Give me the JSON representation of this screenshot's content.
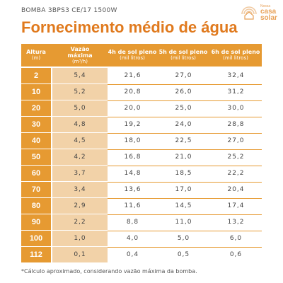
{
  "pump_name": "BOMBA 3BPS3 CE/17 1500W",
  "logo": {
    "small": "Nossa",
    "word1": "casa",
    "word2": "solar"
  },
  "title": "Fornecimento médio de água",
  "headers": {
    "altura": {
      "main": "Altura",
      "sub": "(m)"
    },
    "vazao": {
      "main": "Vazão\nmáxima",
      "sub": "(m³/h)"
    },
    "h4": {
      "main": "4h de sol pleno",
      "sub": "(mil litros)"
    },
    "h5": {
      "main": "5h de sol pleno",
      "sub": "(mil litros)"
    },
    "h6": {
      "main": "6h de sol pleno",
      "sub": "(mil litros)"
    }
  },
  "rows": [
    {
      "altura": "2",
      "vazao": "5,4",
      "h4": "21,6",
      "h5": "27,0",
      "h6": "32,4"
    },
    {
      "altura": "10",
      "vazao": "5,2",
      "h4": "20,8",
      "h5": "26,0",
      "h6": "31,2"
    },
    {
      "altura": "20",
      "vazao": "5,0",
      "h4": "20,0",
      "h5": "25,0",
      "h6": "30,0"
    },
    {
      "altura": "30",
      "vazao": "4,8",
      "h4": "19,2",
      "h5": "24,0",
      "h6": "28,8"
    },
    {
      "altura": "40",
      "vazao": "4,5",
      "h4": "18,0",
      "h5": "22,5",
      "h6": "27,0"
    },
    {
      "altura": "50",
      "vazao": "4,2",
      "h4": "16,8",
      "h5": "21,0",
      "h6": "25,2"
    },
    {
      "altura": "60",
      "vazao": "3,7",
      "h4": "14,8",
      "h5": "18,5",
      "h6": "22,2"
    },
    {
      "altura": "70",
      "vazao": "3,4",
      "h4": "13,6",
      "h5": "17,0",
      "h6": "20,4"
    },
    {
      "altura": "80",
      "vazao": "2,9",
      "h4": "11,6",
      "h5": "14,5",
      "h6": "17,4"
    },
    {
      "altura": "90",
      "vazao": "2,2",
      "h4": "8,8",
      "h5": "11,0",
      "h6": "13,2"
    },
    {
      "altura": "100",
      "vazao": "1,0",
      "h4": "4,0",
      "h5": "5,0",
      "h6": "6,0"
    },
    {
      "altura": "112",
      "vazao": "0,1",
      "h4": "0,4",
      "h5": "0,5",
      "h6": "0,6"
    }
  ],
  "footnote": "*Cálculo aproximado, considerando vazão máxima da bomba.",
  "colors": {
    "accent": "#e69a32",
    "title": "#e07a1e",
    "light_accent": "#f2d2a8"
  },
  "icons": [
    "sun-house-icon"
  ]
}
